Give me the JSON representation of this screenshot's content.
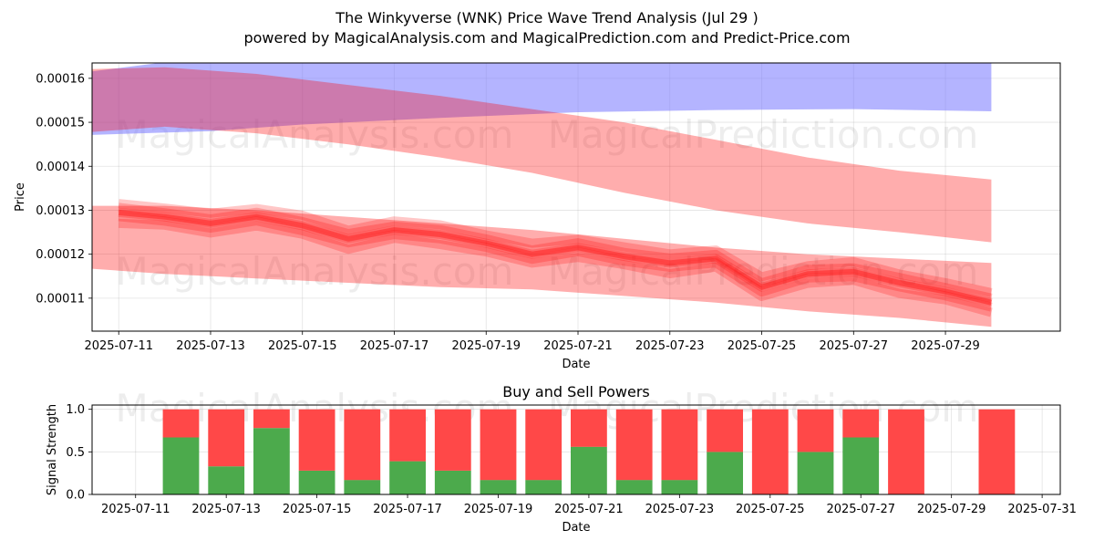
{
  "title_line1": "The Winkyverse (WNK) Price Wave Trend Analysis (Jul 29 )",
  "title_line2": "powered by MagicalAnalysis.com and MagicalPrediction.com and Predict-Price.com",
  "watermarks": [
    "MagicalAnalysis.com",
    "MagicalPrediction.com"
  ],
  "chart_data": [
    {
      "type": "area",
      "name": "price-wave-trend",
      "xlabel": "Date",
      "ylabel": "Price",
      "x_ticks": [
        "2025-07-11",
        "2025-07-13",
        "2025-07-15",
        "2025-07-17",
        "2025-07-19",
        "2025-07-21",
        "2025-07-23",
        "2025-07-25",
        "2025-07-27",
        "2025-07-29"
      ],
      "y_ticks": [
        0.00011,
        0.00012,
        0.00013,
        0.00014,
        0.00015,
        0.00016
      ],
      "ylim": [
        0.0001025,
        0.0001635
      ],
      "xlim": [
        "2025-07-10",
        "2025-07-31"
      ],
      "grid": true,
      "colors": {
        "blue_band": "#7777ff",
        "red_band": "#ff0000"
      },
      "bands": [
        {
          "color": "blue",
          "dates": [
            "2025-07-10",
            "2025-07-13",
            "2025-07-15",
            "2025-07-18",
            "2025-07-21",
            "2025-07-24",
            "2025-07-27",
            "2025-07-30"
          ],
          "upper": [
            0.000161,
            0.000165,
            0.000166,
            0.000166,
            0.000166,
            0.000166,
            0.000166,
            0.000165
          ],
          "lower": [
            0.000147,
            0.000148,
            0.0001495,
            0.000151,
            0.0001523,
            0.0001528,
            0.000153,
            0.0001525
          ]
        },
        {
          "color": "red",
          "dates": [
            "2025-07-10",
            "2025-07-12",
            "2025-07-14",
            "2025-07-16",
            "2025-07-18",
            "2025-07-20",
            "2025-07-22",
            "2025-07-24",
            "2025-07-26",
            "2025-07-28",
            "2025-07-30"
          ],
          "upper": [
            0.000162,
            0.0001625,
            0.000161,
            0.0001585,
            0.000156,
            0.000153,
            0.00015,
            0.000146,
            0.000142,
            0.000139,
            0.000137
          ],
          "lower": [
            0.0001475,
            0.000149,
            0.0001475,
            0.000145,
            0.000142,
            0.0001385,
            0.000134,
            0.00013,
            0.000127,
            0.000125,
            0.0001227
          ]
        },
        {
          "color": "red",
          "dates": [
            "2025-07-10",
            "2025-07-12",
            "2025-07-14",
            "2025-07-16",
            "2025-07-18",
            "2025-07-20",
            "2025-07-22",
            "2025-07-24",
            "2025-07-26",
            "2025-07-28",
            "2025-07-30"
          ],
          "upper": [
            0.000131,
            0.000131,
            0.00013,
            0.0001285,
            0.000127,
            0.0001255,
            0.0001235,
            0.0001215,
            0.00012,
            0.000119,
            0.000118
          ],
          "lower": [
            0.000117,
            0.0001155,
            0.0001145,
            0.0001135,
            0.0001125,
            0.000112,
            0.0001105,
            0.000109,
            0.000107,
            0.0001055,
            0.0001035
          ]
        }
      ],
      "wave_lines": {
        "dates": [
          "2025-07-10",
          "2025-07-11",
          "2025-07-12",
          "2025-07-13",
          "2025-07-14",
          "2025-07-15",
          "2025-07-16",
          "2025-07-17",
          "2025-07-18",
          "2025-07-19",
          "2025-07-20",
          "2025-07-21",
          "2025-07-22",
          "2025-07-23",
          "2025-07-24",
          "2025-07-25",
          "2025-07-26",
          "2025-07-27",
          "2025-07-28",
          "2025-07-29",
          "2025-07-30"
        ],
        "center": [
          0.00013,
          0.0001295,
          0.0001285,
          0.000127,
          0.0001285,
          0.0001265,
          0.0001235,
          0.0001255,
          0.0001245,
          0.0001225,
          0.00012,
          0.0001215,
          0.0001195,
          0.000118,
          0.000119,
          0.0001125,
          0.0001155,
          0.000116,
          0.0001135,
          0.0001115,
          0.000109
        ],
        "offsets": [
          -2.5e-06,
          -1.2e-06,
          0.0,
          1.2e-06,
          2.5e-06
        ]
      }
    },
    {
      "type": "bar",
      "name": "buy-and-sell-powers",
      "title": "Buy and Sell Powers",
      "xlabel": "Date",
      "ylabel": "Signal Strength",
      "x_ticks": [
        "2025-07-11",
        "2025-07-13",
        "2025-07-15",
        "2025-07-17",
        "2025-07-19",
        "2025-07-21",
        "2025-07-23",
        "2025-07-25",
        "2025-07-27",
        "2025-07-29",
        "2025-07-31"
      ],
      "y_ticks": [
        0.0,
        0.5,
        1.0
      ],
      "ylim": [
        0,
        1.05
      ],
      "colors": {
        "buy": "#4caa4c",
        "sell": "#ff4848"
      },
      "dates": [
        "2025-07-12",
        "2025-07-13",
        "2025-07-14",
        "2025-07-15",
        "2025-07-16",
        "2025-07-17",
        "2025-07-18",
        "2025-07-19",
        "2025-07-20",
        "2025-07-21",
        "2025-07-22",
        "2025-07-23",
        "2025-07-24",
        "2025-07-25",
        "2025-07-26",
        "2025-07-27",
        "2025-07-28",
        "2025-07-30"
      ],
      "buy": [
        0.67,
        0.33,
        0.78,
        0.28,
        0.17,
        0.39,
        0.28,
        0.17,
        0.17,
        0.56,
        0.17,
        0.17,
        0.5,
        0.0,
        0.5,
        0.67,
        0.0,
        0.0
      ],
      "sell": [
        0.33,
        0.67,
        0.22,
        0.72,
        0.83,
        0.61,
        0.72,
        0.83,
        0.83,
        0.44,
        0.83,
        0.83,
        0.5,
        1.0,
        0.5,
        0.33,
        1.0,
        1.0
      ]
    }
  ]
}
